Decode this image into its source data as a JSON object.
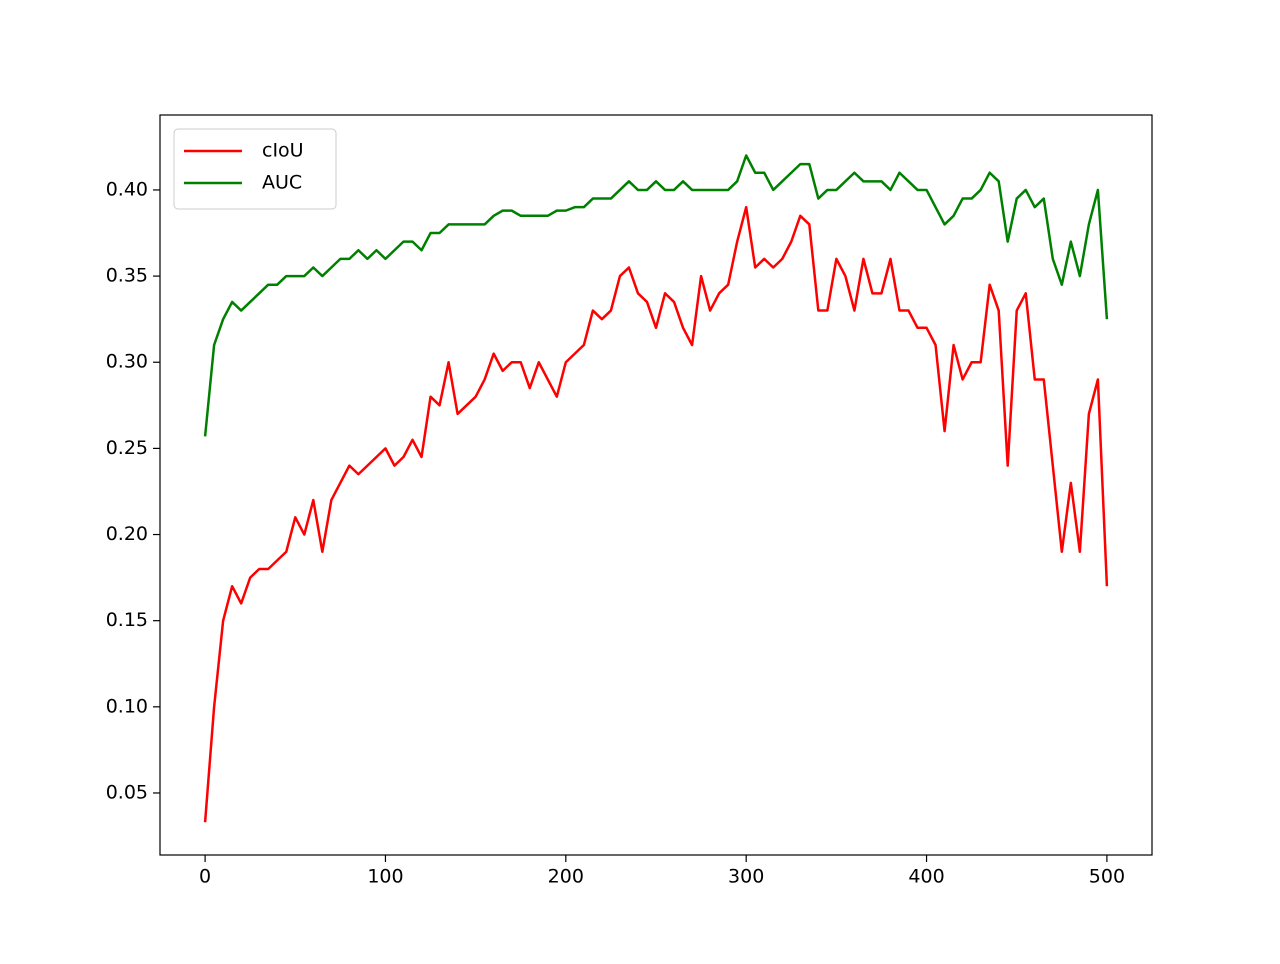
{
  "chart_data": {
    "type": "line",
    "x": [
      0,
      5,
      10,
      15,
      20,
      25,
      30,
      35,
      40,
      45,
      50,
      55,
      60,
      65,
      70,
      75,
      80,
      85,
      90,
      95,
      100,
      105,
      110,
      115,
      120,
      125,
      130,
      135,
      140,
      145,
      150,
      155,
      160,
      165,
      170,
      175,
      180,
      185,
      190,
      195,
      200,
      205,
      210,
      215,
      220,
      225,
      230,
      235,
      240,
      245,
      250,
      255,
      260,
      265,
      270,
      275,
      280,
      285,
      290,
      295,
      300,
      305,
      310,
      315,
      320,
      325,
      330,
      335,
      340,
      345,
      350,
      355,
      360,
      365,
      370,
      375,
      380,
      385,
      390,
      395,
      400,
      405,
      410,
      415,
      420,
      425,
      430,
      435,
      440,
      445,
      450,
      455,
      460,
      465,
      470,
      475,
      480,
      485,
      490,
      495,
      500
    ],
    "series": [
      {
        "name": "cIoU",
        "color": "#ff0000",
        "values": [
          0.033,
          0.1,
          0.15,
          0.17,
          0.16,
          0.175,
          0.18,
          0.18,
          0.185,
          0.19,
          0.21,
          0.2,
          0.22,
          0.19,
          0.22,
          0.23,
          0.24,
          0.235,
          0.24,
          0.245,
          0.25,
          0.24,
          0.245,
          0.255,
          0.245,
          0.28,
          0.275,
          0.3,
          0.27,
          0.275,
          0.28,
          0.29,
          0.305,
          0.295,
          0.3,
          0.3,
          0.285,
          0.3,
          0.29,
          0.28,
          0.3,
          0.305,
          0.31,
          0.33,
          0.325,
          0.33,
          0.35,
          0.355,
          0.34,
          0.335,
          0.32,
          0.34,
          0.335,
          0.32,
          0.31,
          0.35,
          0.33,
          0.34,
          0.345,
          0.37,
          0.39,
          0.355,
          0.36,
          0.355,
          0.36,
          0.37,
          0.385,
          0.38,
          0.33,
          0.33,
          0.36,
          0.35,
          0.33,
          0.36,
          0.34,
          0.34,
          0.36,
          0.33,
          0.33,
          0.32,
          0.32,
          0.31,
          0.26,
          0.31,
          0.29,
          0.3,
          0.3,
          0.345,
          0.33,
          0.24,
          0.33,
          0.34,
          0.29,
          0.29,
          0.24,
          0.19,
          0.23,
          0.19,
          0.27,
          0.29,
          0.17
        ]
      },
      {
        "name": "AUC",
        "color": "#008000",
        "values": [
          0.257,
          0.31,
          0.325,
          0.335,
          0.33,
          0.335,
          0.34,
          0.345,
          0.345,
          0.35,
          0.35,
          0.35,
          0.355,
          0.35,
          0.355,
          0.36,
          0.36,
          0.365,
          0.36,
          0.365,
          0.36,
          0.365,
          0.37,
          0.37,
          0.365,
          0.375,
          0.375,
          0.38,
          0.38,
          0.38,
          0.38,
          0.38,
          0.385,
          0.388,
          0.388,
          0.385,
          0.385,
          0.385,
          0.385,
          0.388,
          0.388,
          0.39,
          0.39,
          0.395,
          0.395,
          0.395,
          0.4,
          0.405,
          0.4,
          0.4,
          0.405,
          0.4,
          0.4,
          0.405,
          0.4,
          0.4,
          0.4,
          0.4,
          0.4,
          0.405,
          0.42,
          0.41,
          0.41,
          0.4,
          0.405,
          0.41,
          0.415,
          0.415,
          0.395,
          0.4,
          0.4,
          0.405,
          0.41,
          0.405,
          0.405,
          0.405,
          0.4,
          0.41,
          0.405,
          0.4,
          0.4,
          0.39,
          0.38,
          0.385,
          0.395,
          0.395,
          0.4,
          0.41,
          0.405,
          0.37,
          0.395,
          0.4,
          0.39,
          0.395,
          0.36,
          0.345,
          0.37,
          0.35,
          0.38,
          0.4,
          0.325
        ]
      }
    ],
    "xlim": [
      -25,
      525
    ],
    "xticks": [
      0,
      100,
      200,
      300,
      400,
      500
    ],
    "ylim": [
      0.014,
      0.4435
    ],
    "yticks": [
      0.05,
      {
        "value": 0.1,
        "label": "0.10"
      },
      0.15,
      {
        "value": 0.2,
        "label": "0.20"
      },
      0.25,
      {
        "value": 0.3,
        "label": "0.30"
      },
      0.35,
      {
        "value": 0.4,
        "label": "0.40"
      }
    ],
    "legend": "upper left"
  }
}
